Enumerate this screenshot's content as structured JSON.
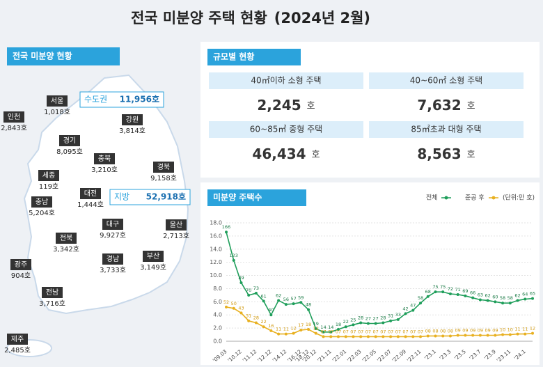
{
  "header": {
    "title": "전국 미분양 주택 현황",
    "period": "(2024년 2월)"
  },
  "map": {
    "title": "전국 미분양 현황",
    "summary": [
      {
        "name": "수도권",
        "value": "11,956호"
      },
      {
        "name": "지방",
        "value": "52,918호"
      }
    ],
    "regions": [
      {
        "name": "인천",
        "value": "2,843호"
      },
      {
        "name": "서울",
        "value": "1,018호"
      },
      {
        "name": "경기",
        "value": "8,095호"
      },
      {
        "name": "강원",
        "value": "3,814호"
      },
      {
        "name": "충북",
        "value": "3,210호"
      },
      {
        "name": "세종",
        "value": "119호"
      },
      {
        "name": "충남",
        "value": "5,204호"
      },
      {
        "name": "대전",
        "value": "1,444호"
      },
      {
        "name": "경북",
        "value": "9,158호"
      },
      {
        "name": "전북",
        "value": "3,342호"
      },
      {
        "name": "대구",
        "value": "9,927호"
      },
      {
        "name": "울산",
        "value": "2,713호"
      },
      {
        "name": "경남",
        "value": "3,733호"
      },
      {
        "name": "부산",
        "value": "3,149호"
      },
      {
        "name": "광주",
        "value": "904호"
      },
      {
        "name": "전남",
        "value": "3,716호"
      },
      {
        "name": "제주",
        "value": "2,485호"
      }
    ]
  },
  "size": {
    "title": "규모별 현황",
    "items": [
      {
        "label": "40㎡이하 소형 주택",
        "value": "2,245",
        "unit": "호"
      },
      {
        "label": "40~60㎡ 소형 주택",
        "value": "7,632",
        "unit": "호"
      },
      {
        "label": "60~85㎡ 중형 주택",
        "value": "46,434",
        "unit": "호"
      },
      {
        "label": "85㎡초과 대형 주택",
        "value": "8,563",
        "unit": "호"
      }
    ]
  },
  "chart_data": {
    "type": "line",
    "title": "미분양 주택수",
    "unit": "(단위:만 호)",
    "categories": [
      "'09.03",
      null,
      "'10.12",
      null,
      "'11.12",
      null,
      "'12.12",
      null,
      "'14.12",
      null,
      "'16.12",
      "'18.12",
      "'20.12",
      null,
      "'21.11",
      null,
      "'22.01",
      null,
      "'22.03",
      null,
      "'22.05",
      null,
      "'22.07",
      null,
      "'22.09",
      null,
      "'22.11",
      null,
      "'23.1",
      null,
      "'23.3",
      null,
      "'23.5",
      null,
      "'23.7",
      null,
      "'23.9",
      null,
      "'23.11",
      null,
      "'24.1",
      null
    ],
    "series": [
      {
        "name": "전체",
        "color": "#1e9e5a",
        "values": [
          16.6,
          12.3,
          8.9,
          7.0,
          7.3,
          6.1,
          4.0,
          6.2,
          5.6,
          5.7,
          5.9,
          4.8,
          1.9,
          1.4,
          1.4,
          1.8,
          2.2,
          2.5,
          2.8,
          2.7,
          2.7,
          2.8,
          3.1,
          3.3,
          4.2,
          4.7,
          5.8,
          6.8,
          7.5,
          7.5,
          7.2,
          7.1,
          6.9,
          6.6,
          6.3,
          6.2,
          6.0,
          5.8,
          5.8,
          6.2,
          6.4,
          6.5
        ],
        "value_labels": [
          "166",
          "123",
          "89",
          "70",
          "73",
          "61",
          "40",
          "62",
          "56",
          "57",
          "59",
          "48",
          "19",
          "14",
          "14",
          "18",
          "22",
          "25",
          "28",
          "27",
          "27",
          "28",
          "31",
          "33",
          "42",
          "47",
          "58",
          "68",
          "75",
          "75",
          "72",
          "71",
          "69",
          "66",
          "63",
          "62",
          "60",
          "58",
          "58",
          "62",
          "64",
          "65"
        ]
      },
      {
        "name": "준공 후",
        "color": "#e8b020",
        "values": [
          5.2,
          5.0,
          4.3,
          3.1,
          2.8,
          2.2,
          1.6,
          1.1,
          1.1,
          1.2,
          1.7,
          1.8,
          1.2,
          0.7,
          0.7,
          0.7,
          0.7,
          0.7,
          0.7,
          0.7,
          0.7,
          0.7,
          0.7,
          0.7,
          0.7,
          0.7,
          0.7,
          0.8,
          0.8,
          0.8,
          0.8,
          0.9,
          0.9,
          0.9,
          0.9,
          0.9,
          0.9,
          1.0,
          1.0,
          1.1,
          1.1,
          1.2
        ],
        "value_labels": [
          "52",
          "50",
          "43",
          "31",
          "28",
          "22",
          "16",
          "11",
          "11",
          "12",
          "17",
          "18",
          "12",
          "07",
          "07",
          "07",
          "07",
          "07",
          "07",
          "07",
          "07",
          "07",
          "07",
          "07",
          "07",
          "07",
          "07",
          "08",
          "08",
          "08",
          "08",
          "09",
          "09",
          "09",
          "09",
          "09",
          "09",
          "10",
          "10",
          "11",
          "11",
          "12"
        ]
      }
    ],
    "ylim": [
      0,
      18
    ],
    "yticks": [
      {
        "value": 0,
        "label": "0.0"
      },
      {
        "value": 2,
        "label": "2.0"
      },
      {
        "value": 4,
        "label": "4.0"
      },
      {
        "value": 6,
        "label": "6.0"
      },
      {
        "value": 8,
        "label": "8.0"
      },
      {
        "value": 10,
        "label": "10.0"
      },
      {
        "value": 12,
        "label": "12.0"
      },
      {
        "value": 14,
        "label": "14.0"
      },
      {
        "value": 16,
        "label": "16.0"
      },
      {
        "value": 18,
        "label": "18.0"
      }
    ],
    "grid": true
  }
}
